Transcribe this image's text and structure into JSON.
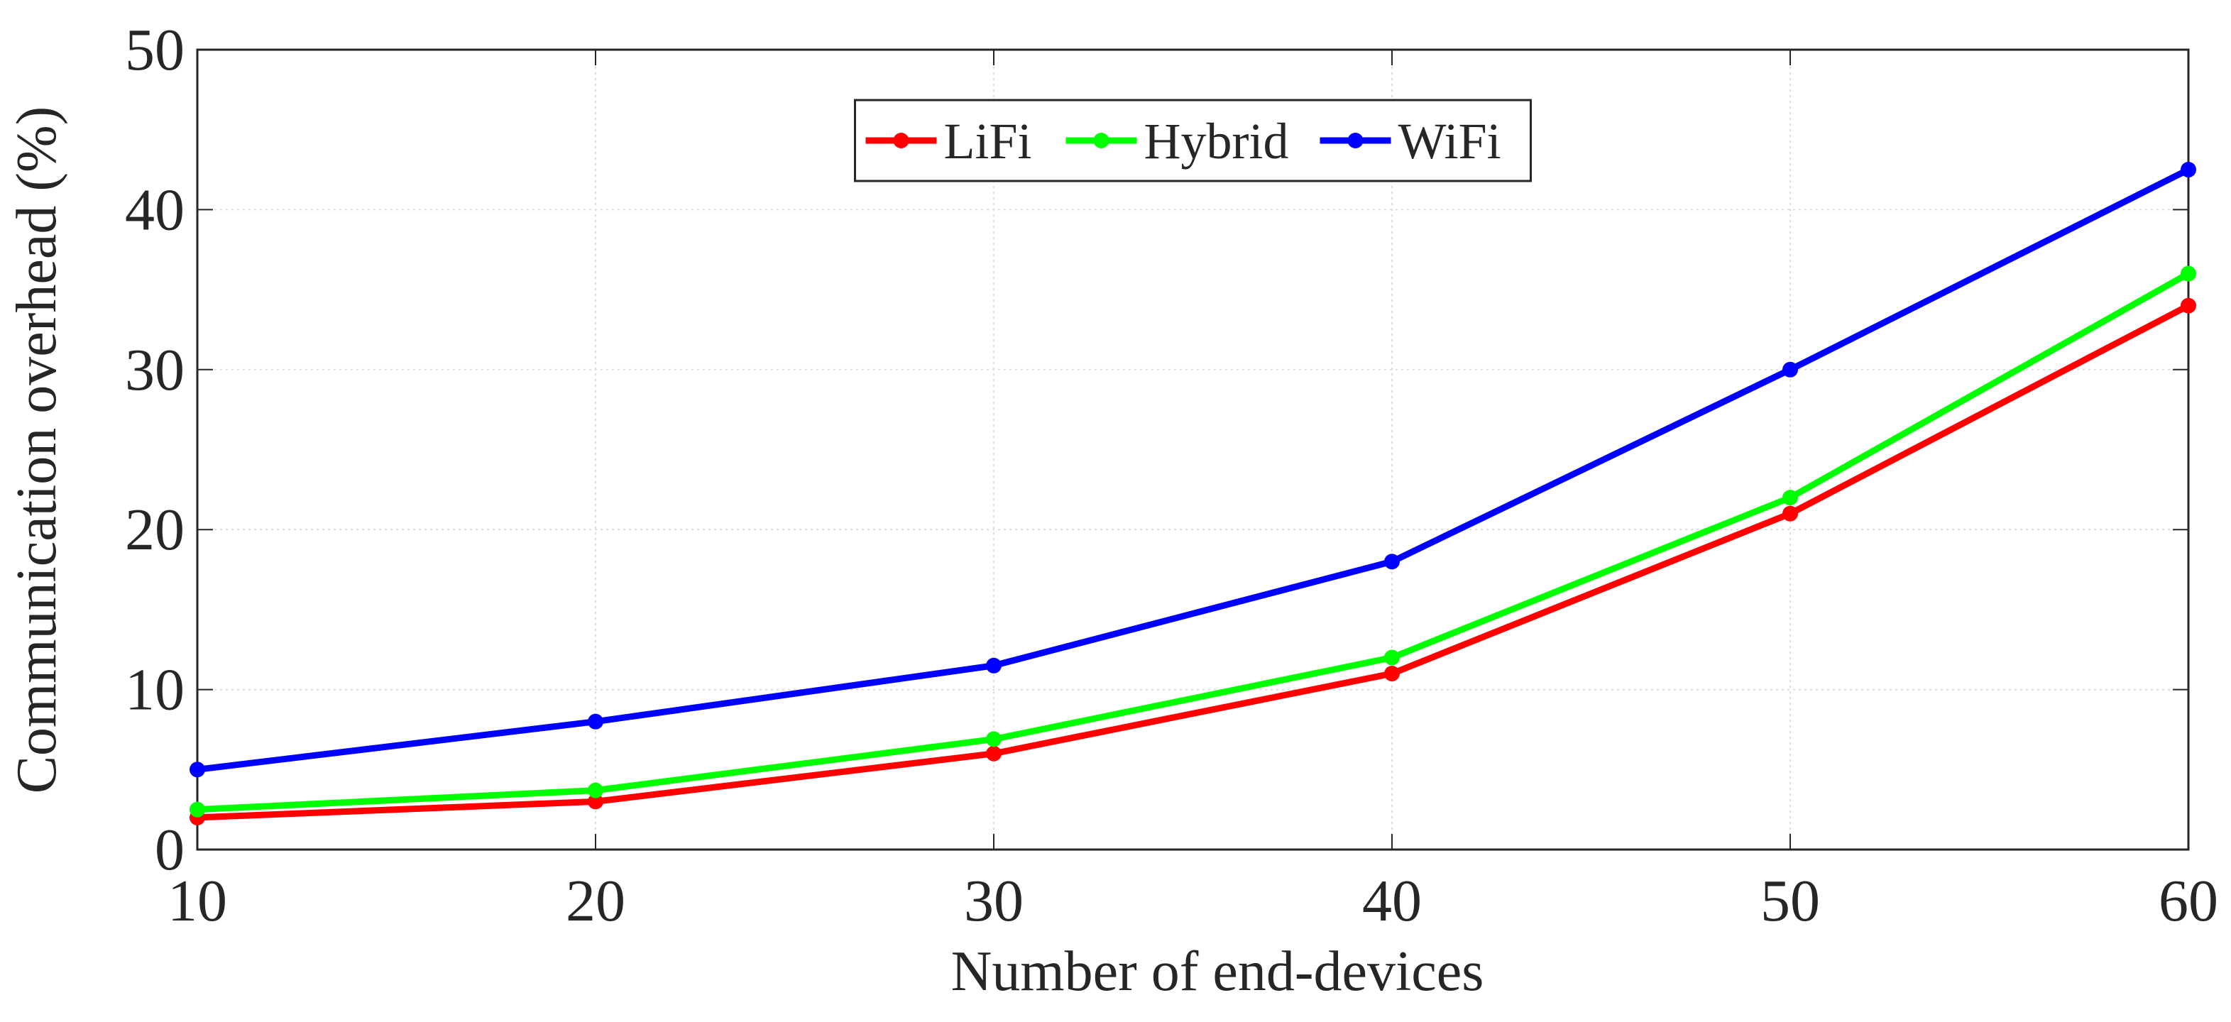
{
  "chart_data": {
    "type": "line",
    "xlabel": "Number of end-devices",
    "ylabel": "Communication overhead (%)",
    "x": [
      10,
      20,
      30,
      40,
      50,
      60
    ],
    "series": [
      {
        "name": "LiFi",
        "color": "#ff0000",
        "values": [
          2,
          3,
          6,
          11,
          21,
          34
        ]
      },
      {
        "name": "Hybrid",
        "color": "#00ff00",
        "values": [
          2.5,
          3.7,
          6.9,
          12,
          22,
          36
        ]
      },
      {
        "name": "WiFi",
        "color": "#0000ff",
        "values": [
          5,
          8,
          11.5,
          18,
          30,
          42.5
        ]
      }
    ],
    "xlim": [
      10,
      60
    ],
    "xticks": [
      10,
      20,
      30,
      40,
      50,
      60
    ],
    "ylim": [
      0,
      50
    ],
    "yticks": [
      0,
      10,
      20,
      30,
      40,
      50
    ],
    "grid": true,
    "legend": "upper center"
  }
}
